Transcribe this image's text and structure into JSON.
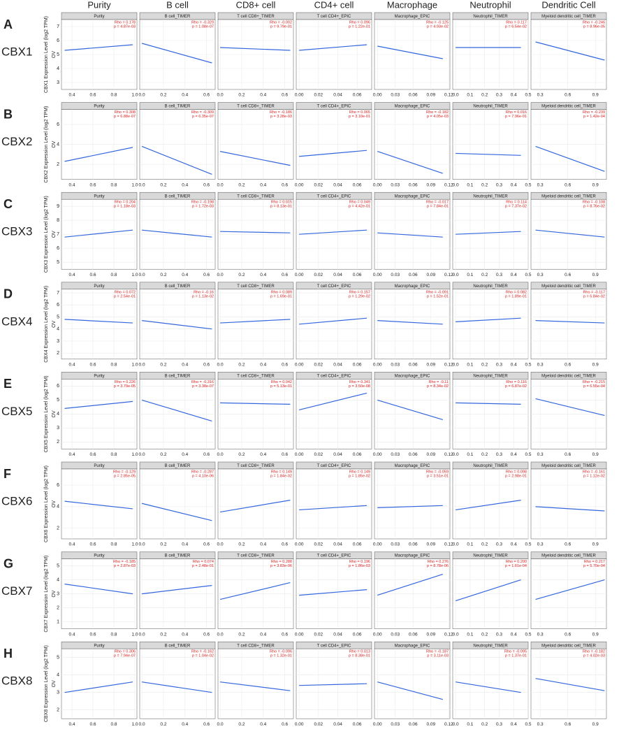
{
  "chart_data": {
    "type": "scatter",
    "columns": [
      {
        "header": "Purity",
        "strip": "Purity",
        "xlim": [
          0.3,
          1.02
        ],
        "xticks": [
          0.4,
          0.6,
          0.8,
          {
            "value": 1,
            "label": "1.0"
          }
        ],
        "fit_x": [
          0.33,
          0.98
        ]
      },
      {
        "header": "B cell",
        "strip": "B cell_TIMER",
        "xlim": [
          -0.02,
          0.68
        ],
        "xticks": [
          {
            "value": 0,
            "label": "0.0"
          },
          0.2,
          0.4,
          0.6
        ],
        "fit_x": [
          0,
          0.65
        ]
      },
      {
        "header": "CD8+ cell",
        "strip": "T cell CD8+_TIMER",
        "xlim": [
          -0.02,
          0.68
        ],
        "xticks": [
          {
            "value": 0,
            "label": "0.0"
          },
          0.2,
          0.4,
          0.6
        ],
        "fit_x": [
          0,
          0.65
        ]
      },
      {
        "header": "CD4+ cell",
        "strip": "T cell CD4+_EPIC",
        "xlim": [
          -0.003,
          0.075
        ],
        "xticks": [
          {
            "value": 0,
            "label": "0.00"
          },
          0.02,
          0.04,
          0.06
        ],
        "fit_x": [
          0,
          0.07
        ]
      },
      {
        "header": "Macrophage",
        "strip": "Macrophage_EPIC",
        "xlim": [
          -0.005,
          0.122
        ],
        "xticks": [
          {
            "value": 0,
            "label": "0.00"
          },
          0.03,
          0.06,
          0.09,
          0.12
        ],
        "fit_x": [
          0,
          0.11
        ]
      },
      {
        "header": "Neutrophil",
        "strip": "Neutrophil_TIMER",
        "xlim": [
          -0.02,
          0.5
        ],
        "xticks": [
          {
            "value": 0,
            "label": "0.0"
          },
          0.1,
          0.2,
          0.3,
          0.4,
          0.5
        ],
        "fit_x": [
          0,
          0.45
        ]
      },
      {
        "header": "Dendritic Cell",
        "strip": "Myeloid dendritic cell_TIMER",
        "xlim": [
          0.2,
          1.02
        ],
        "xticks": [
          0.3,
          0.6,
          0.9
        ],
        "fit_x": [
          0.25,
          1.0
        ]
      }
    ],
    "rows": [
      {
        "letter": "A",
        "gene": "CBX1",
        "ylabel": "CBX1 Expression Level (log2 TPM)",
        "cohort": "OV",
        "ylim": [
          2.5,
          7.5
        ],
        "yticks": [
          3,
          4,
          5,
          6,
          7
        ],
        "panels": [
          {
            "rho": "Rho = 0.178",
            "p": "p = 4.87e-03",
            "fit": [
              5.3,
              5.7
            ]
          },
          {
            "rho": "Rho = -0.329",
            "p": "p = 1.08e-07",
            "fit": [
              5.8,
              4.4
            ]
          },
          {
            "rho": "Rho = -0.002",
            "p": "p = 9.79e-01",
            "fit": [
              5.5,
              5.3
            ]
          },
          {
            "rho": "Rho = 0.096",
            "p": "p = 1.22e-01",
            "fit": [
              5.3,
              5.7
            ]
          },
          {
            "rho": "Rho = -0.125",
            "p": "p = 4.93e-02",
            "fit": [
              5.6,
              4.7
            ]
          },
          {
            "rho": "Rho = 0.117",
            "p": "p = 6.54e-02",
            "fit": [
              5.5,
              5.5
            ]
          },
          {
            "rho": "Rho = -0.246",
            "p": "p = 8.96e-05",
            "fit": [
              5.9,
              4.6
            ]
          }
        ]
      },
      {
        "letter": "B",
        "gene": "CBX2",
        "ylabel": "CBX2 Expression Level (log2 TPM)",
        "cohort": "OV",
        "ylim": [
          0.5,
          7.5
        ],
        "yticks": [
          2,
          4,
          6
        ],
        "panels": [
          {
            "rho": "Rho = 0.308",
            "p": "p = 6.88e-07",
            "fit": [
              2.3,
              3.7
            ]
          },
          {
            "rho": "Rho = -0.309",
            "p": "p = 6.35e-07",
            "fit": [
              3.8,
              1.0
            ]
          },
          {
            "rho": "Rho = -0.186",
            "p": "p = 3.28e-03",
            "fit": [
              3.3,
              1.9
            ]
          },
          {
            "rho": "Rho = 0.065",
            "p": "p = 3.10e-01",
            "fit": [
              2.8,
              3.4
            ]
          },
          {
            "rho": "Rho = -0.182",
            "p": "p = 4.05e-03",
            "fit": [
              3.3,
              1.1
            ]
          },
          {
            "rho": "Rho = 0.016",
            "p": "p = 7.96e-01",
            "fit": [
              3.1,
              2.9
            ]
          },
          {
            "rho": "Rho = -0.239",
            "p": "p = 1.42e-04",
            "fit": [
              3.8,
              1.3
            ]
          }
        ]
      },
      {
        "letter": "C",
        "gene": "CBX3",
        "ylabel": "CBX3 Expression Level (log2 TPM)",
        "cohort": "OV",
        "ylim": [
          4.5,
          9.5
        ],
        "yticks": [
          5,
          6,
          7,
          8,
          9
        ],
        "panels": [
          {
            "rho": "Rho = 0.204",
            "p": "p = 1.18e-03",
            "fit": [
              6.8,
              7.3
            ]
          },
          {
            "rho": "Rho = -0.198",
            "p": "p = 1.72e-03",
            "fit": [
              7.3,
              6.8
            ]
          },
          {
            "rho": "Rho = 0.015",
            "p": "p = 8.13e-01",
            "fit": [
              7.2,
              7.1
            ]
          },
          {
            "rho": "Rho = 0.049",
            "p": "p = 4.42e-01",
            "fit": [
              7.0,
              7.3
            ]
          },
          {
            "rho": "Rho = -0.017",
            "p": "p = 7.84e-01",
            "fit": [
              7.1,
              6.8
            ]
          },
          {
            "rho": "Rho = 0.114",
            "p": "p = 7.37e-02",
            "fit": [
              7.0,
              7.2
            ]
          },
          {
            "rho": "Rho = -0.108",
            "p": "p = 8.76e-02",
            "fit": [
              7.3,
              6.8
            ]
          }
        ]
      },
      {
        "letter": "D",
        "gene": "CBX4",
        "ylabel": "CBX4 Expression Level (log2 TPM)",
        "cohort": "OV",
        "ylim": [
          1.5,
          7.3
        ],
        "yticks": [
          2,
          3,
          4,
          5,
          6,
          7
        ],
        "panels": [
          {
            "rho": "Rho = 0.072",
            "p": "p = 2.54e-01",
            "fit": [
              4.8,
              4.5
            ]
          },
          {
            "rho": "Rho = -0.16",
            "p": "p = 1.13e-02",
            "fit": [
              4.7,
              4.0
            ]
          },
          {
            "rho": "Rho = 0.089",
            "p": "p = 1.69e-01",
            "fit": [
              4.5,
              4.8
            ]
          },
          {
            "rho": "Rho = 0.157",
            "p": "p = 1.29e-02",
            "fit": [
              4.4,
              4.9
            ]
          },
          {
            "rho": "Rho = -0.091",
            "p": "p = 1.52e-01",
            "fit": [
              4.7,
              4.4
            ]
          },
          {
            "rho": "Rho = 0.082",
            "p": "p = 1.89e-01",
            "fit": [
              4.6,
              4.9
            ]
          },
          {
            "rho": "Rho = -0.117",
            "p": "p = 6.84e-02",
            "fit": [
              4.7,
              4.5
            ]
          }
        ]
      },
      {
        "letter": "E",
        "gene": "CBX5",
        "ylabel": "CBX5 Expression Level (log2 TPM)",
        "cohort": "OV",
        "ylim": [
          1.5,
          6.5
        ],
        "yticks": [
          2,
          3,
          4,
          5,
          6
        ],
        "panels": [
          {
            "rho": "Rho = 0.226",
            "p": "p = 3.79e-05",
            "fit": [
              4.4,
              4.9
            ]
          },
          {
            "rho": "Rho = -0.316",
            "p": "p = 3.38e-07",
            "fit": [
              5.0,
              3.5
            ]
          },
          {
            "rho": "Rho = 0.042",
            "p": "p = 5.13e-01",
            "fit": [
              4.8,
              4.7
            ]
          },
          {
            "rho": "Rho = 0.341",
            "p": "p = 3.50e-08",
            "fit": [
              4.3,
              5.5
            ]
          },
          {
            "rho": "Rho = -0.11",
            "p": "p = 8.34e-02",
            "fit": [
              5.0,
              3.6
            ]
          },
          {
            "rho": "Rho = 0.116",
            "p": "p = 6.87e-02",
            "fit": [
              4.8,
              4.7
            ]
          },
          {
            "rho": "Rho = -0.215",
            "p": "p = 6.55e-04",
            "fit": [
              5.1,
              3.9
            ]
          }
        ]
      },
      {
        "letter": "F",
        "gene": "CBX6",
        "ylabel": "CBX6 Expression Level (log2 TPM)",
        "cohort": "OV",
        "ylim": [
          1,
          7.5
        ],
        "yticks": [
          2,
          4,
          6
        ],
        "panels": [
          {
            "rho": "Rho = -0.129",
            "p": "p = 2.85e-05",
            "fit": [
              4.5,
              3.8
            ]
          },
          {
            "rho": "Rho = -0.287",
            "p": "p = 4.10e-06",
            "fit": [
              4.3,
              2.7
            ]
          },
          {
            "rho": "Rho = 0.149",
            "p": "p = 1.84e-02",
            "fit": [
              3.5,
              4.6
            ]
          },
          {
            "rho": "Rho = 0.149",
            "p": "p = 1.85e-02",
            "fit": [
              3.7,
              4.1
            ]
          },
          {
            "rho": "Rho = -0.059",
            "p": "p = 3.51e-01",
            "fit": [
              3.9,
              4.1
            ]
          },
          {
            "rho": "Rho = 0.098",
            "p": "p = 2.98e-01",
            "fit": [
              3.7,
              4.6
            ]
          },
          {
            "rho": "Rho = -0.161",
            "p": "p = 1.12e-02",
            "fit": [
              4.0,
              3.6
            ]
          }
        ]
      },
      {
        "letter": "G",
        "gene": "CBX7",
        "ylabel": "CBX7 Expression Level (log2 TPM)",
        "cohort": "OV",
        "ylim": [
          0.5,
          5.5
        ],
        "yticks": [
          1,
          2,
          3,
          4,
          5
        ],
        "panels": [
          {
            "rho": "Rho = -0.185",
            "p": "p = 2.87e-03",
            "fit": [
              3.7,
              3.0
            ]
          },
          {
            "rho": "Rho = 0.074",
            "p": "p = 2.48e-01",
            "fit": [
              3.0,
              3.6
            ]
          },
          {
            "rho": "Rho = 0.288",
            "p": "p = 3.83e-06",
            "fit": [
              2.6,
              3.8
            ]
          },
          {
            "rho": "Rho = 0.196",
            "p": "p = 1.86e-03",
            "fit": [
              2.9,
              3.3
            ]
          },
          {
            "rho": "Rho = 0.276",
            "p": "p = 8.78e-06",
            "fit": [
              2.9,
              4.4
            ]
          },
          {
            "rho": "Rho = 0.200",
            "p": "p = 1.61e-04",
            "fit": [
              2.5,
              4.0
            ]
          },
          {
            "rho": "Rho = 0.217",
            "p": "p = 5.70e-04",
            "fit": [
              2.6,
              4.0
            ]
          }
        ]
      },
      {
        "letter": "H",
        "gene": "CBX8",
        "ylabel": "CBX8 Expression Level (log2 TPM)",
        "cohort": "OV",
        "ylim": [
          1.5,
          5.5
        ],
        "yticks": [
          2,
          3,
          4,
          5
        ],
        "panels": [
          {
            "rho": "Rho = 0.306",
            "p": "p = 7.94e-07",
            "fit": [
              3.0,
              3.6
            ]
          },
          {
            "rho": "Rho = -0.162",
            "p": "p = 1.04e-02",
            "fit": [
              3.6,
              3.0
            ]
          },
          {
            "rho": "Rho = -0.096",
            "p": "p = 1.32e-01",
            "fit": [
              3.6,
              3.1
            ]
          },
          {
            "rho": "Rho = 0.013",
            "p": "p = 8.38e-01",
            "fit": [
              3.4,
              3.5
            ]
          },
          {
            "rho": "Rho = -0.187",
            "p": "p = 3.11e-03",
            "fit": [
              3.6,
              2.6
            ]
          },
          {
            "rho": "Rho = -0.095",
            "p": "p = 1.37e-01",
            "fit": [
              3.6,
              3.0
            ]
          },
          {
            "rho": "Rho = -0.182",
            "p": "p = 4.02e-03",
            "fit": [
              3.8,
              3.1
            ]
          }
        ]
      }
    ]
  }
}
